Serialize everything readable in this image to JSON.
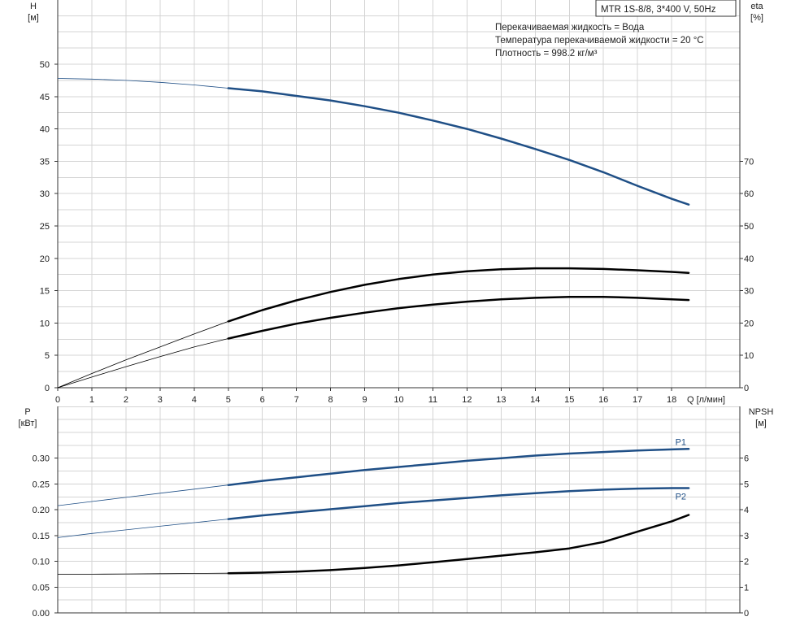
{
  "chart_data": [
    {
      "type": "line",
      "panel": "upper",
      "title_box": "MTR 1S-8/8, 3*400 V, 50Hz",
      "info_lines": [
        "Перекачиваемая жидкость = Вода",
        "Температура перекачиваемой жидкости = 20 °C",
        "Плотность = 998.2 кг/м³"
      ],
      "xlabel": "Q [л/мин]",
      "xlim": [
        0,
        20
      ],
      "x_ticks": [
        0,
        1,
        2,
        3,
        4,
        5,
        6,
        7,
        8,
        9,
        10,
        11,
        12,
        13,
        14,
        15,
        16,
        17,
        18
      ],
      "left_axis": {
        "name": "H",
        "unit": "[м]",
        "ylim": [
          0,
          50
        ],
        "ticks": [
          0,
          5,
          10,
          15,
          20,
          25,
          30,
          35,
          40,
          45,
          50
        ]
      },
      "right_axis": {
        "name": "eta",
        "unit": "[%]",
        "ylim": [
          0,
          100
        ],
        "ticks": [
          0,
          10,
          20,
          30,
          40,
          50,
          60,
          70
        ]
      },
      "grid": true,
      "series": [
        {
          "axis": "left",
          "color": "#1f4f86",
          "range_start": 5,
          "x": [
            0,
            1,
            2,
            3,
            4,
            5,
            6,
            7,
            8,
            9,
            10,
            11,
            12,
            13,
            14,
            15,
            16,
            17,
            18,
            18.5
          ],
          "y": [
            47.8,
            47.7,
            47.5,
            47.2,
            46.8,
            46.3,
            45.8,
            45.1,
            44.4,
            43.5,
            42.5,
            41.3,
            40.0,
            38.5,
            36.9,
            35.2,
            33.3,
            31.2,
            29.2,
            28.3
          ]
        },
        {
          "axis": "right",
          "color": "#000000",
          "range_start": 5,
          "x": [
            0,
            1,
            2,
            3,
            4,
            5,
            6,
            7,
            8,
            9,
            10,
            11,
            12,
            13,
            14,
            15,
            16,
            17,
            18,
            18.5
          ],
          "y": [
            0,
            4.4,
            8.6,
            12.6,
            16.6,
            20.5,
            24,
            27,
            29.6,
            31.8,
            33.6,
            35,
            36,
            36.6,
            36.9,
            36.9,
            36.7,
            36.3,
            35.8,
            35.5
          ]
        },
        {
          "axis": "right",
          "color": "#000000",
          "range_start": 5,
          "x": [
            0,
            1,
            2,
            3,
            4,
            5,
            6,
            7,
            8,
            9,
            10,
            11,
            12,
            13,
            14,
            15,
            16,
            17,
            18,
            18.5
          ],
          "y": [
            0,
            3.3,
            6.5,
            9.6,
            12.6,
            15.2,
            17.6,
            19.8,
            21.6,
            23.2,
            24.6,
            25.7,
            26.6,
            27.3,
            27.8,
            28.1,
            28.1,
            27.8,
            27.3,
            27.1
          ]
        }
      ]
    },
    {
      "type": "line",
      "panel": "lower",
      "xlim": [
        0,
        20
      ],
      "left_axis": {
        "name": "P",
        "unit": "[кВт]",
        "ylim": [
          0,
          0.35
        ],
        "ticks": [
          "0.00",
          "0.05",
          "0.10",
          "0.15",
          "0.20",
          "0.25",
          "0.30"
        ]
      },
      "right_axis": {
        "name": "NPSH",
        "unit": "[м]",
        "ylim": [
          0,
          7
        ],
        "ticks": [
          0,
          1,
          2,
          3,
          4,
          5,
          6
        ]
      },
      "grid": true,
      "series": [
        {
          "name": "P1",
          "axis": "left",
          "color": "#1f4f86",
          "range_start": 5,
          "x": [
            0,
            1,
            2,
            3,
            4,
            5,
            6,
            7,
            8,
            9,
            10,
            11,
            12,
            13,
            14,
            15,
            16,
            17,
            18,
            18.5
          ],
          "y": [
            0.208,
            0.216,
            0.224,
            0.232,
            0.24,
            0.248,
            0.256,
            0.263,
            0.27,
            0.277,
            0.283,
            0.289,
            0.295,
            0.3,
            0.305,
            0.309,
            0.312,
            0.315,
            0.317,
            0.318
          ]
        },
        {
          "name": "P2",
          "axis": "left",
          "color": "#1f4f86",
          "range_start": 5,
          "x": [
            0,
            1,
            2,
            3,
            4,
            5,
            6,
            7,
            8,
            9,
            10,
            11,
            12,
            13,
            14,
            15,
            16,
            17,
            18,
            18.5
          ],
          "y": [
            0.146,
            0.154,
            0.161,
            0.168,
            0.175,
            0.182,
            0.189,
            0.195,
            0.201,
            0.207,
            0.213,
            0.218,
            0.223,
            0.228,
            0.232,
            0.236,
            0.239,
            0.241,
            0.242,
            0.242
          ]
        },
        {
          "axis": "right",
          "color": "#000000",
          "range_start": 5,
          "x": [
            0,
            1,
            2,
            3,
            4,
            5,
            6,
            7,
            8,
            9,
            10,
            11,
            12,
            13,
            14,
            15,
            16,
            17,
            18,
            18.5
          ],
          "y": [
            1.5,
            1.5,
            1.51,
            1.52,
            1.53,
            1.54,
            1.56,
            1.6,
            1.66,
            1.74,
            1.84,
            1.96,
            2.09,
            2.22,
            2.35,
            2.5,
            2.75,
            3.15,
            3.55,
            3.8
          ]
        }
      ]
    }
  ]
}
